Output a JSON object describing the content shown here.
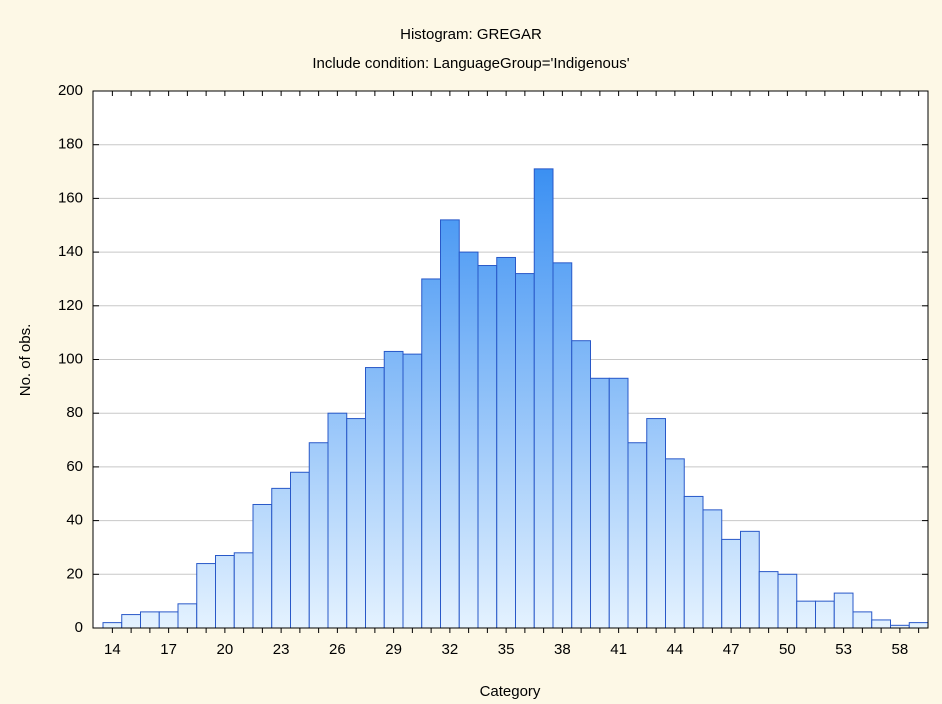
{
  "chart_data": {
    "type": "bar",
    "title": "Histogram: GREGAR",
    "subtitle": "Include condition: LanguageGroup='Indigenous'",
    "x_label": "Category",
    "y_label": "No. of obs.",
    "categories": [
      "14",
      null,
      null,
      "17",
      null,
      null,
      "20",
      null,
      null,
      "23",
      null,
      null,
      "26",
      null,
      null,
      "29",
      null,
      null,
      "32",
      null,
      null,
      "35",
      null,
      null,
      "38",
      null,
      null,
      "41",
      null,
      null,
      "44",
      null,
      null,
      "47",
      null,
      null,
      "50",
      null,
      null,
      "53",
      null,
      null,
      "58",
      null
    ],
    "values": [
      2,
      5,
      6,
      6,
      9,
      24,
      27,
      28,
      46,
      52,
      58,
      69,
      80,
      78,
      97,
      103,
      102,
      130,
      152,
      140,
      135,
      138,
      132,
      171,
      136,
      107,
      93,
      93,
      69,
      78,
      63,
      49,
      44,
      33,
      36,
      21,
      20,
      10,
      10,
      13,
      6,
      3,
      1,
      2
    ],
    "color": "#1e7ff0",
    "ylim": [
      0,
      200
    ],
    "yticks": [
      0,
      20,
      40,
      60,
      80,
      100,
      120,
      140,
      160,
      180,
      200
    ],
    "grid": true
  }
}
